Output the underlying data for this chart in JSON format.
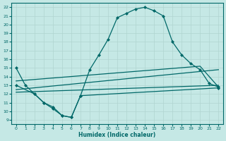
{
  "xlabel": "Humidex (Indice chaleur)",
  "bg_color": "#c5e8e5",
  "line_color": "#006868",
  "grid_color": "#b0d5d0",
  "xlim": [
    -0.5,
    22.5
  ],
  "ylim": [
    8.5,
    22.5
  ],
  "yticks": [
    9,
    10,
    11,
    12,
    13,
    14,
    15,
    16,
    17,
    18,
    19,
    20,
    21,
    22
  ],
  "xticks": [
    0,
    1,
    2,
    3,
    4,
    5,
    6,
    7,
    8,
    9,
    10,
    11,
    12,
    13,
    14,
    15,
    16,
    17,
    18,
    19,
    20,
    21,
    22
  ],
  "curve1_x": [
    0,
    1,
    2,
    3,
    4,
    5,
    6,
    7,
    8,
    9,
    10,
    11,
    12,
    13,
    14,
    15,
    16,
    17,
    18,
    19,
    20,
    21,
    22
  ],
  "curve1_y": [
    15,
    13,
    12,
    11,
    10.5,
    9.5,
    9.3,
    11.8,
    14.8,
    16.5,
    18.3,
    20.8,
    21.3,
    21.8,
    22.0,
    21.6,
    21.0,
    18.0,
    16.5,
    15.5,
    14.8,
    13.2,
    12.8
  ],
  "curve2_x": [
    0,
    2,
    3,
    4,
    5,
    6,
    7,
    22
  ],
  "curve2_y": [
    13,
    12,
    11,
    10.3,
    9.5,
    9.3,
    11.8,
    12.7
  ],
  "line3_x": [
    0,
    22
  ],
  "line3_y": [
    12.2,
    13.0
  ],
  "line4_x": [
    0,
    22
  ],
  "line4_y": [
    12.5,
    14.8
  ],
  "line5_x": [
    0,
    20,
    22
  ],
  "line5_y": [
    13.5,
    15.2,
    12.8
  ],
  "marker": "D",
  "markersize": 2.0,
  "linewidth": 0.9
}
